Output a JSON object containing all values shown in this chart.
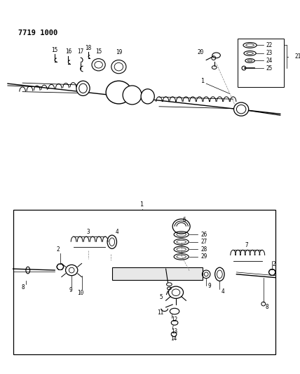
{
  "title": "7719 1000",
  "bg_color": "#ffffff",
  "lc": "#000000",
  "fig_width": 4.28,
  "fig_height": 5.33,
  "dpi": 100
}
